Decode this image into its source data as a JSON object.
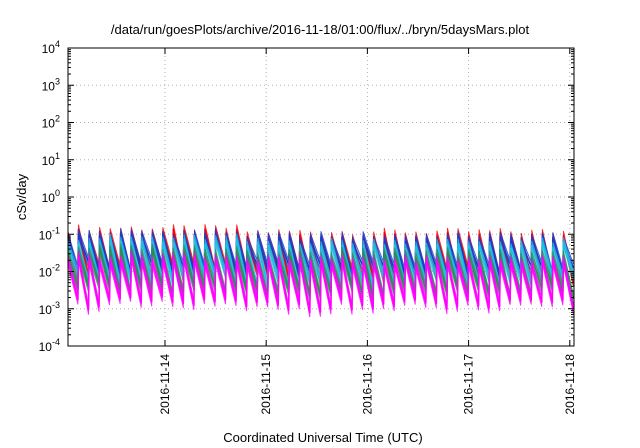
{
  "chart_data": {
    "type": "line",
    "title": "/data/run/goesPlots/archive/2016-11-18/01:00/flux/../bryn/5daysMars.plot",
    "xlabel": "Coordinated Universal Time (UTC)",
    "ylabel": "cSv/day",
    "y_scale": "log",
    "ylim": [
      0.0001,
      10000
    ],
    "xlim": [
      "2016-11-13T01:00",
      "2016-11-18T01:00"
    ],
    "y_ticks": [
      {
        "value": 0.0001,
        "base": "10",
        "exp": "-4"
      },
      {
        "value": 0.001,
        "base": "10",
        "exp": "-3"
      },
      {
        "value": 0.01,
        "base": "10",
        "exp": "-2"
      },
      {
        "value": 0.1,
        "base": "10",
        "exp": "-1"
      },
      {
        "value": 1,
        "base": "10",
        "exp": "0"
      },
      {
        "value": 10,
        "base": "10",
        "exp": "1"
      },
      {
        "value": 100,
        "base": "10",
        "exp": "2"
      },
      {
        "value": 1000,
        "base": "10",
        "exp": "3"
      },
      {
        "value": 10000,
        "base": "10",
        "exp": "4"
      }
    ],
    "x_ticks": [
      "2016-11-14",
      "2016-11-15",
      "2016-11-16",
      "2016-11-17",
      "2016-11-18"
    ],
    "grid": true,
    "legend": "none",
    "cycle_hours": 2.5,
    "series": [
      {
        "color": "#ff0000",
        "peak": 0.09,
        "trough": 0.009
      },
      {
        "color": "#1a3ccc",
        "peak": 0.075,
        "trough": 0.012
      },
      {
        "color": "#20c0e0",
        "peak": 0.05,
        "trough": 0.006
      },
      {
        "color": "#2e8b57",
        "peak": 0.028,
        "trough": 0.003
      },
      {
        "color": "#ff00ff",
        "peak": 0.018,
        "trough": 0.0014
      }
    ]
  }
}
